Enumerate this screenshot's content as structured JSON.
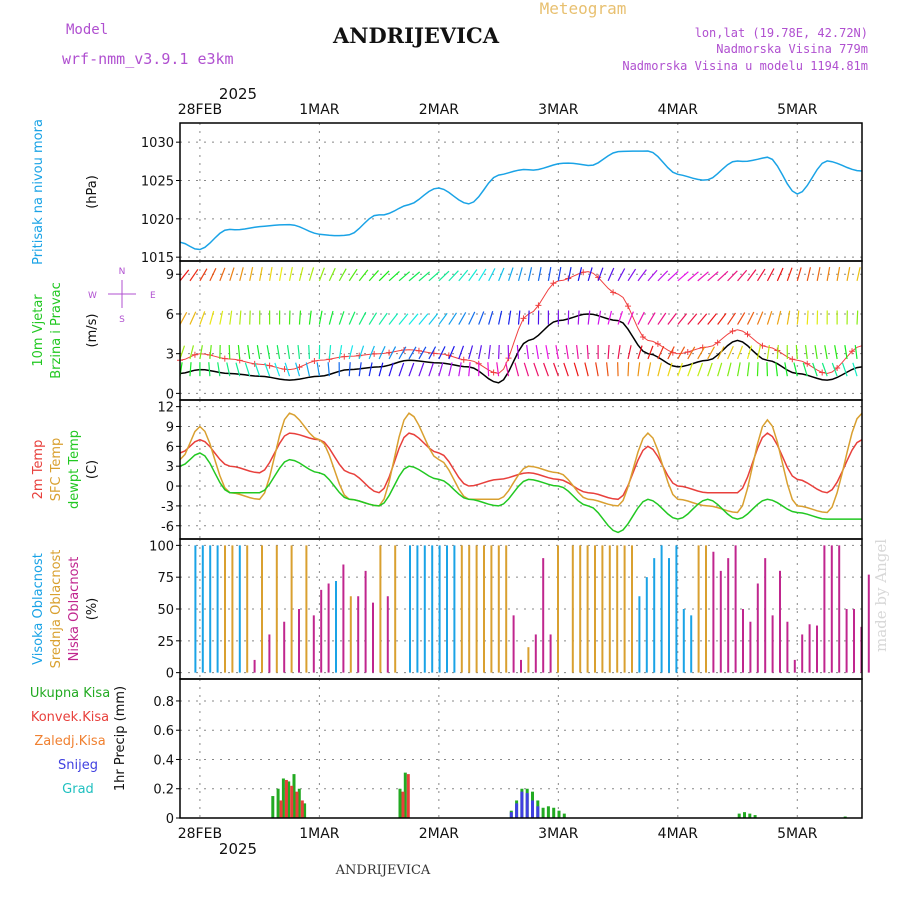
{
  "header": {
    "model_label": "Model",
    "model_name": "wrf-nmm_v3.9.1 e3km",
    "station": "ANDRIJEVICA",
    "product": "Meteogram",
    "lonlat": "lon,lat (19.78E, 42.72N)",
    "elevation": "Nadmorska Visina 779m",
    "model_elevation": "Nadmorska Visina u modelu 1194.81m",
    "year": "2025",
    "footer_station": "ANDRIJEVICA",
    "watermark": "made by Angel"
  },
  "colors": {
    "pressure": "#1aa3e6",
    "temp2m": "#e8403c",
    "sfc": "#d9a030",
    "dewpt": "#22c822",
    "wind_speed": "#000000",
    "gust": "#f04040",
    "high_cloud": "#1aa3e6",
    "mid_cloud": "#d9a030",
    "low_cloud": "#c0268e",
    "total_precip": "#22aa22",
    "conv_precip": "#e8403c",
    "frozen": "#f08030",
    "snow": "#4040e0",
    "hail": "#20c0c0",
    "model_text": "#b050d0",
    "grid": "#888888"
  },
  "chart_data": {
    "type": "line",
    "time_axis": {
      "start_hours_before_28FEB": 4,
      "end_hours_after_5MAR": 13,
      "day_labels": [
        "28FEB",
        "1MAR",
        "2MAR",
        "3MAR",
        "4MAR",
        "5MAR"
      ]
    },
    "panels": [
      {
        "id": "pressure",
        "title": "Pritisak na nivou mora",
        "unit": "(hPa)",
        "ylim": [
          1014.5,
          1032.5
        ],
        "ticks": [
          1015,
          1020,
          1025,
          1030
        ],
        "series": [
          {
            "name": "MSLP",
            "color_key": "pressure",
            "x_hours": [
              -4,
              0,
              6,
              12,
              18,
              24,
              30,
              36,
              42,
              48,
              54,
              60,
              66,
              72,
              78,
              84,
              90,
              96,
              102,
              108,
              114,
              120,
              126,
              133
            ],
            "values": [
              1017.2,
              1016.0,
              1018.5,
              1019.2,
              1019.0,
              1018.2,
              1017.8,
              1020.5,
              1022.0,
              1023.8,
              1022.2,
              1025.5,
              1026.5,
              1027.2,
              1026.8,
              1029.0,
              1028.6,
              1026.0,
              1025.0,
              1027.5,
              1028.2,
              1023.0,
              1027.8,
              1026.0
            ]
          }
        ]
      },
      {
        "id": "wind",
        "title": "10m Vjetar",
        "title2": "Brzina i Pravac",
        "unit": "(m/s)",
        "ylim": [
          -0.5,
          10
        ],
        "ticks": [
          0,
          3,
          6,
          9
        ],
        "compass": {
          "n": "N",
          "s": "S",
          "w": "W",
          "e": "E"
        },
        "series": [
          {
            "name": "Speed",
            "color_key": "wind_speed",
            "x_hours": [
              -4,
              0,
              6,
              12,
              18,
              24,
              30,
              36,
              42,
              48,
              54,
              60,
              66,
              72,
              78,
              84,
              90,
              96,
              102,
              108,
              114,
              120,
              126,
              133
            ],
            "values": [
              1.5,
              1.8,
              1.5,
              1.3,
              1.0,
              1.3,
              1.8,
              2.0,
              2.5,
              2.3,
              2.0,
              0.8,
              4.0,
              5.5,
              6.0,
              5.5,
              3.0,
              2.0,
              2.5,
              4.0,
              2.5,
              1.5,
              1.0,
              2.0
            ]
          },
          {
            "name": "Gust",
            "color_key": "gust",
            "x_hours": [
              -4,
              0,
              6,
              12,
              18,
              24,
              30,
              36,
              42,
              48,
              54,
              60,
              66,
              72,
              78,
              84,
              90,
              96,
              102,
              108,
              114,
              120,
              126,
              133
            ],
            "values": [
              2.5,
              3.0,
              2.6,
              2.2,
              1.8,
              2.5,
              2.8,
              3.0,
              3.3,
              3.0,
              2.5,
              1.5,
              6.0,
              8.5,
              9.2,
              7.5,
              4.0,
              3.0,
              3.5,
              4.8,
              3.5,
              2.5,
              1.5,
              3.6
            ]
          }
        ],
        "barb_rows": [
          8.5,
          5.2,
          2.6,
          1.3
        ]
      },
      {
        "id": "temperature",
        "title": "2m Temp",
        "title2": "SFC Temp",
        "title3": "dewpt Temp",
        "unit": "(C)",
        "ylim": [
          -8,
          13
        ],
        "ticks": [
          -6,
          -3,
          0,
          3,
          6,
          9,
          12
        ],
        "series": [
          {
            "name": "2m Temp",
            "color_key": "temp2m",
            "x_hours": [
              -4,
              0,
              6,
              12,
              18,
              24,
              30,
              36,
              42,
              48,
              54,
              60,
              66,
              72,
              78,
              84,
              90,
              96,
              102,
              108,
              114,
              120,
              126,
              133
            ],
            "values": [
              5,
              7,
              3,
              2,
              8,
              7,
              2,
              -1,
              8,
              5,
              0,
              1,
              2,
              1,
              -1,
              -2,
              6,
              0,
              -1,
              -1,
              8,
              1,
              -1,
              7
            ]
          },
          {
            "name": "SFC Temp",
            "color_key": "sfc",
            "x_hours": [
              -4,
              0,
              6,
              12,
              18,
              24,
              30,
              36,
              42,
              48,
              54,
              60,
              66,
              72,
              78,
              84,
              90,
              96,
              102,
              108,
              114,
              120,
              126,
              133
            ],
            "values": [
              4,
              9,
              -1,
              -2,
              11,
              7,
              -2,
              -3,
              11,
              4,
              -2,
              -2,
              3,
              2,
              -2,
              -3,
              8,
              -2,
              -3,
              -4,
              10,
              -3,
              -4,
              11
            ]
          },
          {
            "name": "dewpt Temp",
            "color_key": "dewpt",
            "x_hours": [
              -4,
              0,
              6,
              12,
              18,
              24,
              30,
              36,
              42,
              48,
              54,
              60,
              66,
              72,
              78,
              84,
              90,
              96,
              102,
              108,
              114,
              120,
              126,
              133
            ],
            "values": [
              3,
              5,
              -1,
              -1,
              4,
              2,
              -2,
              -3,
              3,
              1,
              -2,
              -3,
              1,
              0,
              -3,
              -7,
              -2,
              -5,
              -2,
              -5,
              -2,
              -4,
              -5,
              -5
            ]
          }
        ]
      },
      {
        "id": "clouds",
        "title": "Visoka Oblacnost",
        "title2": "Srednja Oblacnost",
        "title3": "Niska Oblacnost",
        "unit": "(%)",
        "ylim": [
          -5,
          105
        ],
        "ticks": [
          0,
          25,
          50,
          75,
          100
        ],
        "bars_high": [
          [
            1,
            100
          ],
          [
            2,
            100
          ],
          [
            3,
            100
          ],
          [
            4,
            100
          ],
          [
            7,
            100
          ],
          [
            20,
            72
          ],
          [
            30,
            100
          ],
          [
            31,
            100
          ],
          [
            32,
            100
          ],
          [
            33,
            100
          ],
          [
            34,
            100
          ],
          [
            35,
            100
          ],
          [
            36,
            100
          ],
          [
            60,
            40
          ],
          [
            61,
            60
          ],
          [
            62,
            75
          ],
          [
            63,
            90
          ],
          [
            64,
            100
          ],
          [
            65,
            90
          ],
          [
            66,
            100
          ],
          [
            67,
            50
          ],
          [
            68,
            45
          ]
        ],
        "bars_mid": [
          [
            5,
            100
          ],
          [
            6,
            100
          ],
          [
            8,
            100
          ],
          [
            10,
            100
          ],
          [
            12,
            100
          ],
          [
            14,
            100
          ],
          [
            16,
            100
          ],
          [
            22,
            60
          ],
          [
            26,
            100
          ],
          [
            28,
            100
          ],
          [
            37,
            100
          ],
          [
            38,
            100
          ],
          [
            39,
            100
          ],
          [
            40,
            100
          ],
          [
            41,
            100
          ],
          [
            42,
            100
          ],
          [
            43,
            100
          ],
          [
            46,
            20
          ],
          [
            50,
            100
          ],
          [
            52,
            100
          ],
          [
            53,
            100
          ],
          [
            54,
            100
          ],
          [
            55,
            100
          ],
          [
            56,
            100
          ],
          [
            57,
            100
          ],
          [
            58,
            100
          ],
          [
            59,
            100
          ],
          [
            60,
            100
          ],
          [
            69,
            100
          ],
          [
            70,
            100
          ]
        ],
        "bars_low": [
          [
            9,
            10
          ],
          [
            11,
            30
          ],
          [
            13,
            40
          ],
          [
            15,
            50
          ],
          [
            17,
            45
          ],
          [
            18,
            65
          ],
          [
            19,
            70
          ],
          [
            21,
            85
          ],
          [
            23,
            60
          ],
          [
            24,
            80
          ],
          [
            25,
            55
          ],
          [
            27,
            60
          ],
          [
            44,
            45
          ],
          [
            45,
            10
          ],
          [
            47,
            30
          ],
          [
            48,
            90
          ],
          [
            49,
            30
          ],
          [
            71,
            95
          ],
          [
            72,
            80
          ],
          [
            73,
            90
          ],
          [
            74,
            100
          ],
          [
            75,
            50
          ],
          [
            76,
            40
          ],
          [
            77,
            70
          ],
          [
            78,
            90
          ],
          [
            79,
            45
          ],
          [
            80,
            80
          ],
          [
            81,
            40
          ],
          [
            82,
            10
          ],
          [
            83,
            30
          ],
          [
            84,
            38
          ],
          [
            85,
            37
          ],
          [
            86,
            100
          ],
          [
            87,
            100
          ],
          [
            88,
            100
          ],
          [
            89,
            50
          ],
          [
            90,
            50
          ],
          [
            91,
            36
          ],
          [
            92,
            77
          ]
        ]
      },
      {
        "id": "precip",
        "title": "1hr Precip",
        "unit": "(mm)",
        "ylim": [
          0,
          0.95
        ],
        "ticks": [
          0,
          0.2,
          0.4,
          0.6,
          0.8
        ],
        "legend": [
          "Ukupna Kisa",
          "Konvek.Kisa",
          "Zaledj.Kisa",
          "Snijeg",
          "Grad"
        ],
        "bars_total": [
          [
            16,
            0.15
          ],
          [
            17,
            0.2
          ],
          [
            18,
            0.27
          ],
          [
            19,
            0.25
          ],
          [
            20,
            0.3
          ],
          [
            21,
            0.2
          ],
          [
            22,
            0.1
          ],
          [
            40,
            0.2
          ],
          [
            41,
            0.31
          ],
          [
            61,
            0.05
          ],
          [
            62,
            0.12
          ],
          [
            63,
            0.2
          ],
          [
            64,
            0.2
          ],
          [
            65,
            0.18
          ],
          [
            66,
            0.12
          ],
          [
            67,
            0.07
          ],
          [
            68,
            0.08
          ],
          [
            69,
            0.07
          ],
          [
            70,
            0.05
          ],
          [
            71,
            0.03
          ],
          [
            104,
            0.03
          ],
          [
            105,
            0.04
          ],
          [
            106,
            0.03
          ],
          [
            107,
            0.02
          ],
          [
            124,
            0.01
          ]
        ],
        "bars_conv": [
          [
            17,
            0.12
          ],
          [
            18,
            0.26
          ],
          [
            19,
            0.22
          ],
          [
            20,
            0.18
          ],
          [
            21,
            0.12
          ],
          [
            40,
            0.18
          ],
          [
            41,
            0.3
          ]
        ],
        "bars_snow": [
          [
            61,
            0.04
          ],
          [
            62,
            0.1
          ],
          [
            63,
            0.18
          ],
          [
            64,
            0.17
          ],
          [
            65,
            0.12
          ],
          [
            66,
            0.08
          ]
        ]
      }
    ]
  }
}
